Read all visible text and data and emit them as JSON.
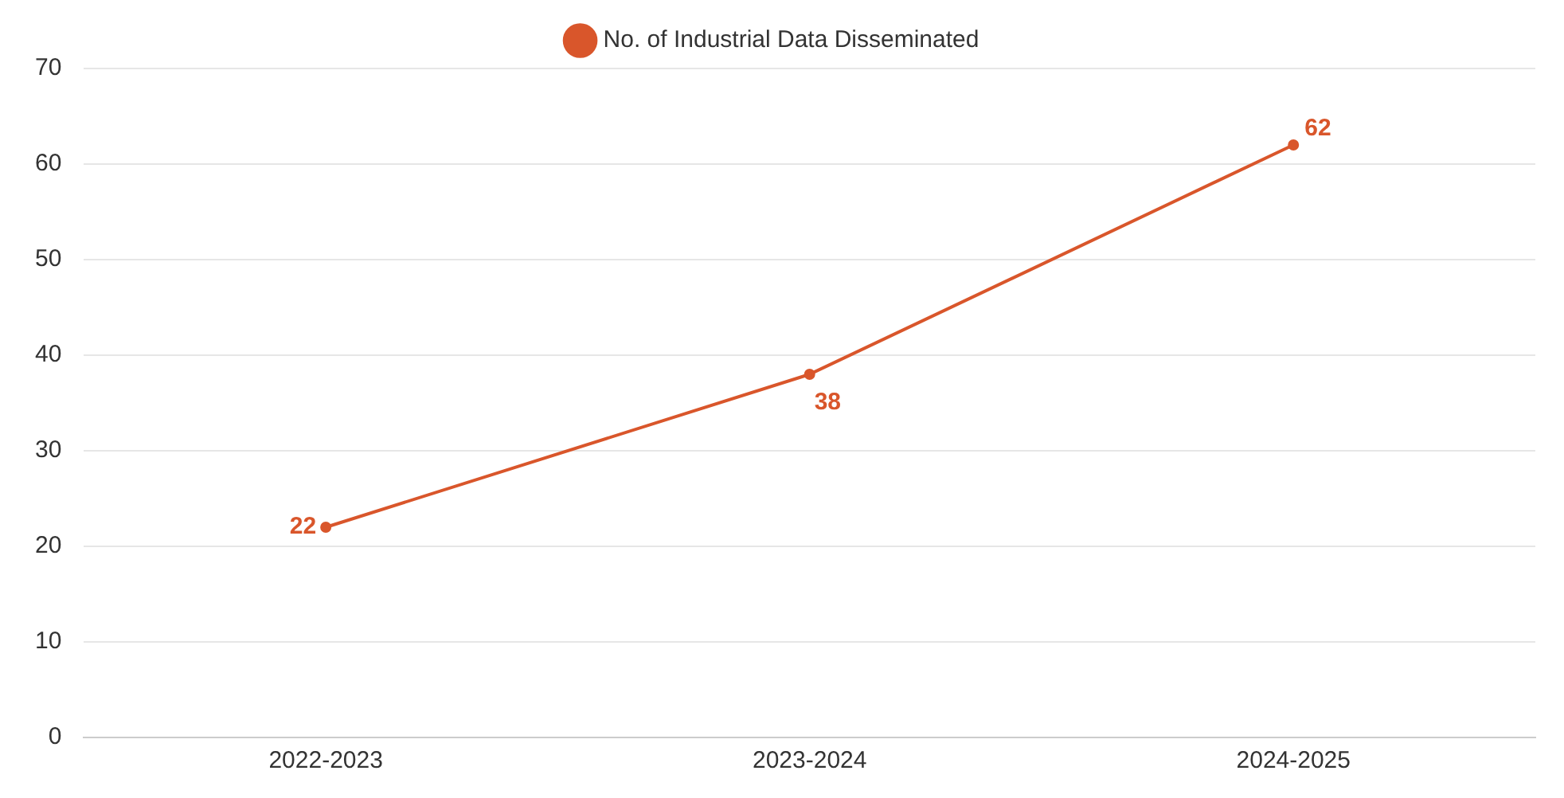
{
  "chart_data": {
    "type": "line",
    "categories": [
      "2022-2023",
      "2023-2024",
      "2024-2025"
    ],
    "series": [
      {
        "name": "No. of Industrial Data Disseminated",
        "color": "#d9562b",
        "values": [
          22,
          38,
          62
        ]
      }
    ],
    "ylim": [
      0,
      70
    ],
    "yticks": [
      0,
      10,
      20,
      30,
      40,
      50,
      60,
      70
    ],
    "grid": "y",
    "legend": "top",
    "marker": "circle",
    "data_labels": true
  }
}
